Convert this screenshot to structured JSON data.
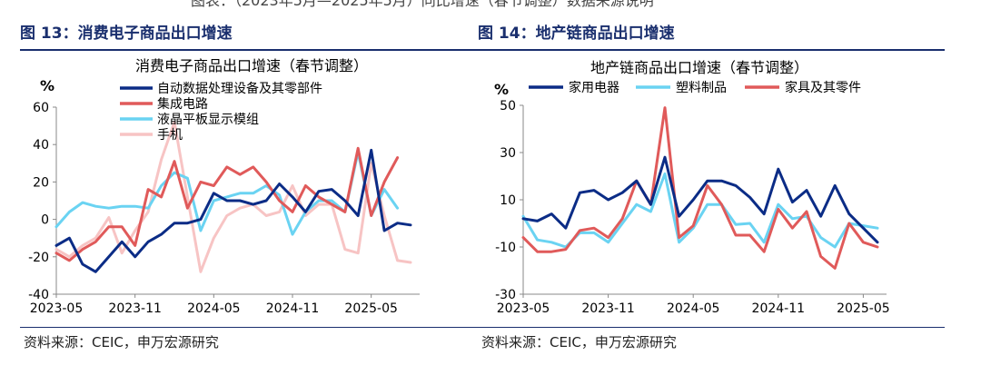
{
  "header_cut": "图表：（2023年5月—2025年5月）同比增速（春节调整）数据来源说明",
  "panels": [
    {
      "fig_title": "图 13：消费电子商品出口增速",
      "source": "资料来源：CEIC，申万宏源研究"
    },
    {
      "fig_title": "图 14：地产链商品出口增速",
      "source": "资料来源：CEIC，申万宏源研究"
    }
  ],
  "chart_data": [
    {
      "type": "line",
      "title": "消费电子商品出口增速（春节调整）",
      "ylabel": "%",
      "ylim": [
        -40,
        60
      ],
      "yticks": [
        -40,
        -20,
        0,
        20,
        40,
        60
      ],
      "x_tick_labels": [
        "2023-05",
        "2023-11",
        "2024-05",
        "2024-11",
        "2025-05"
      ],
      "x_tick_index": [
        0,
        6,
        12,
        18,
        24
      ],
      "legend_position": "top-left",
      "legend_layout": "column",
      "series": [
        {
          "name": "自动数据处理设备及其零部件",
          "color": "#0b2c86",
          "values": [
            -14,
            -10,
            -24,
            -28,
            -20,
            -12,
            -20,
            -12,
            -8,
            -2,
            -2,
            0,
            14,
            10,
            10,
            8,
            10,
            19,
            12,
            4,
            15,
            16,
            10,
            2,
            37,
            -6,
            -2,
            -3
          ]
        },
        {
          "name": "集成电路",
          "color": "#e05a5a",
          "values": [
            -18,
            -22,
            -16,
            -12,
            -4,
            -4,
            -14,
            16,
            12,
            31,
            6,
            20,
            18,
            28,
            24,
            28,
            20,
            10,
            4,
            18,
            12,
            8,
            4,
            38,
            2,
            20,
            33
          ]
        },
        {
          "name": "液晶平板显示模组",
          "color": "#6ad3f2",
          "values": [
            -4,
            4,
            9,
            7,
            6,
            7,
            7,
            6,
            18,
            25,
            22,
            -6,
            10,
            12,
            14,
            14,
            18,
            13,
            -8,
            4,
            10,
            10,
            4,
            36,
            2,
            16,
            6
          ]
        },
        {
          "name": "手机",
          "color": "#f7c4c4",
          "values": [
            -16,
            -20,
            -14,
            -10,
            1,
            -18,
            -6,
            4,
            32,
            52,
            12,
            -28,
            -10,
            2,
            6,
            8,
            2,
            4,
            18,
            2,
            8,
            8,
            -16,
            -18,
            30,
            2,
            -22,
            -23
          ]
        }
      ]
    },
    {
      "type": "line",
      "title": "地产链商品出口增速（春节调整）",
      "ylabel": "%",
      "ylim": [
        -30,
        50
      ],
      "yticks": [
        -30,
        -10,
        10,
        30,
        50
      ],
      "x_tick_labels": [
        "2023-05",
        "2023-11",
        "2024-05",
        "2024-11",
        "2025-05"
      ],
      "x_tick_index": [
        0,
        6,
        12,
        18,
        24
      ],
      "legend_position": "top",
      "legend_layout": "row",
      "series": [
        {
          "name": "家用电器",
          "color": "#0b2c86",
          "values": [
            2,
            1,
            4,
            -2,
            13,
            14,
            10,
            13,
            18,
            8,
            28,
            3,
            10,
            18,
            18,
            16,
            11,
            4,
            23,
            9,
            14,
            3,
            16,
            4,
            -2,
            -8
          ]
        },
        {
          "name": "塑料制品",
          "color": "#6ad3f2",
          "values": [
            3,
            -7,
            -8,
            -10,
            -4,
            -4,
            -8,
            0,
            8,
            5,
            21,
            -8,
            -2,
            8,
            8,
            -0.5,
            0,
            -8,
            8,
            2,
            3,
            -6,
            -10,
            0,
            -1,
            -2
          ]
        },
        {
          "name": "家具及其零件",
          "color": "#e05a5a",
          "values": [
            -6,
            -12,
            -12,
            -11,
            -3,
            -2,
            -6,
            2,
            18,
            8,
            49,
            -6,
            -1,
            16,
            8,
            -5,
            -5,
            -12,
            6,
            -2,
            5,
            -14,
            -19,
            0,
            -8,
            -10
          ]
        }
      ]
    }
  ]
}
